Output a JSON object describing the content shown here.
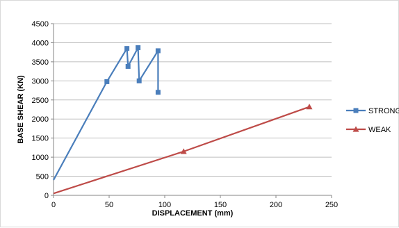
{
  "chart_data": {
    "type": "line",
    "title": "",
    "xlabel": "DISPLACEMENT (mm)",
    "ylabel": "BASE SHEAR (KN)",
    "xlim": [
      0,
      250
    ],
    "ylim": [
      0,
      4500
    ],
    "xticks": [
      0,
      50,
      100,
      150,
      200,
      250
    ],
    "yticks": [
      0,
      500,
      1000,
      1500,
      2000,
      2500,
      3000,
      3500,
      4000,
      4500
    ],
    "grid": "horizontal",
    "legend_position": "right",
    "series": [
      {
        "name": "STRONG",
        "color": "#4a7ebb",
        "marker": "square",
        "x": [
          0,
          48,
          66,
          67,
          76,
          77,
          94,
          94
        ],
        "y": [
          400,
          2980,
          3850,
          3380,
          3870,
          3000,
          3790,
          2700
        ],
        "markers_at": [
          1,
          2,
          3,
          4,
          5,
          6,
          7
        ]
      },
      {
        "name": "WEAK",
        "color": "#be4b48",
        "marker": "triangle",
        "x": [
          0,
          117,
          230
        ],
        "y": [
          50,
          1150,
          2320
        ],
        "markers_at": [
          1,
          2
        ]
      }
    ]
  }
}
